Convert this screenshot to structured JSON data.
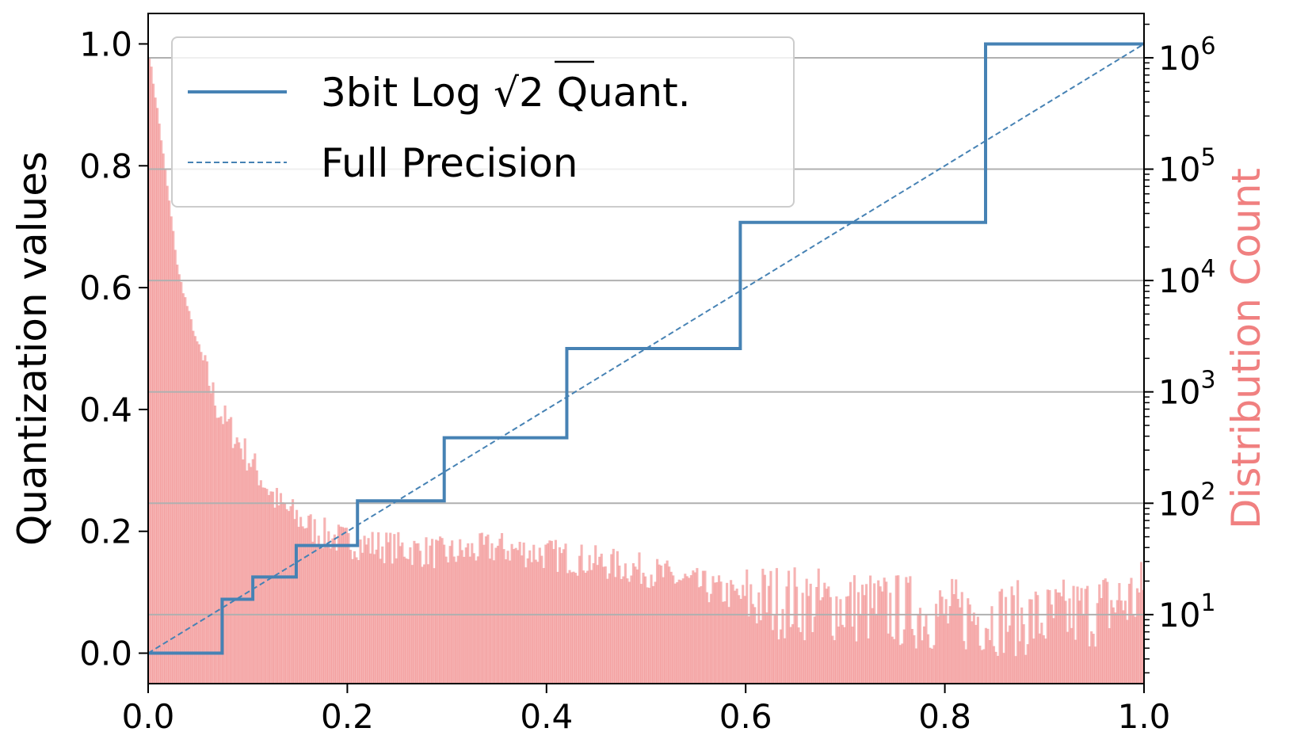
{
  "chart_data": {
    "type": "line",
    "title": "",
    "xlabel": "",
    "ylabel": "Quantization values",
    "y2label": "Distribution Count",
    "xlim": [
      0.0,
      1.0
    ],
    "ylim": [
      -0.05,
      1.05
    ],
    "y2scale": "log",
    "x_ticks": [
      "0.0",
      "0.2",
      "0.4",
      "0.6",
      "0.8",
      "1.0"
    ],
    "y_ticks": [
      "0.0",
      "0.2",
      "0.4",
      "0.6",
      "0.8",
      "1.0"
    ],
    "y2_ticks": [
      {
        "base": "10",
        "exp": "1"
      },
      {
        "base": "10",
        "exp": "2"
      },
      {
        "base": "10",
        "exp": "3"
      },
      {
        "base": "10",
        "exp": "4"
      },
      {
        "base": "10",
        "exp": "5"
      },
      {
        "base": "10",
        "exp": "6"
      }
    ],
    "grid": "horizontal (right axis)",
    "legend_position": "upper-left",
    "series": [
      {
        "name": "3bit Log √2 Quant.",
        "style": "step",
        "color": "#4682b4",
        "x": [
          0.0,
          0.0743,
          0.0743,
          0.1051,
          0.1051,
          0.1487,
          0.1487,
          0.2102,
          0.2102,
          0.2973,
          0.2973,
          0.4204,
          0.4204,
          0.5946,
          0.5946,
          0.8409,
          0.8409,
          1.0
        ],
        "y": [
          0.0,
          0.0,
          0.0884,
          0.0884,
          0.125,
          0.125,
          0.1768,
          0.1768,
          0.25,
          0.25,
          0.3536,
          0.3536,
          0.5,
          0.5,
          0.7071,
          0.7071,
          1.0,
          1.0
        ]
      },
      {
        "name": "Full Precision",
        "style": "dashed",
        "color": "#4682b4",
        "x": [
          0.0,
          1.0
        ],
        "y": [
          0.0,
          1.0
        ]
      }
    ],
    "histogram": {
      "axis": "right",
      "color": "#f08080",
      "x_range": [
        0.0,
        1.0
      ],
      "bins": 500,
      "envelope": [
        {
          "x": 0.0,
          "count": 1200000
        },
        {
          "x": 0.01,
          "count": 300000
        },
        {
          "x": 0.02,
          "count": 60000
        },
        {
          "x": 0.03,
          "count": 12000
        },
        {
          "x": 0.05,
          "count": 2500
        },
        {
          "x": 0.07,
          "count": 700
        },
        {
          "x": 0.1,
          "count": 260
        },
        {
          "x": 0.13,
          "count": 100
        },
        {
          "x": 0.17,
          "count": 55
        },
        {
          "x": 0.2,
          "count": 45
        },
        {
          "x": 0.3,
          "count": 35
        },
        {
          "x": 0.35,
          "count": 40
        },
        {
          "x": 0.4,
          "count": 35
        },
        {
          "x": 0.5,
          "count": 25
        },
        {
          "x": 0.6,
          "count": 14
        },
        {
          "x": 0.7,
          "count": 12
        },
        {
          "x": 0.8,
          "count": 10
        },
        {
          "x": 0.9,
          "count": 9
        },
        {
          "x": 0.95,
          "count": 11
        },
        {
          "x": 1.0,
          "count": 15
        }
      ],
      "y2lim": [
        2.4,
        2500000
      ]
    }
  },
  "legend": {
    "quant_prefix": "3bit Log ",
    "quant_radicand": "2",
    "quant_suffix": " Quant.",
    "full_precision": "Full Precision"
  }
}
